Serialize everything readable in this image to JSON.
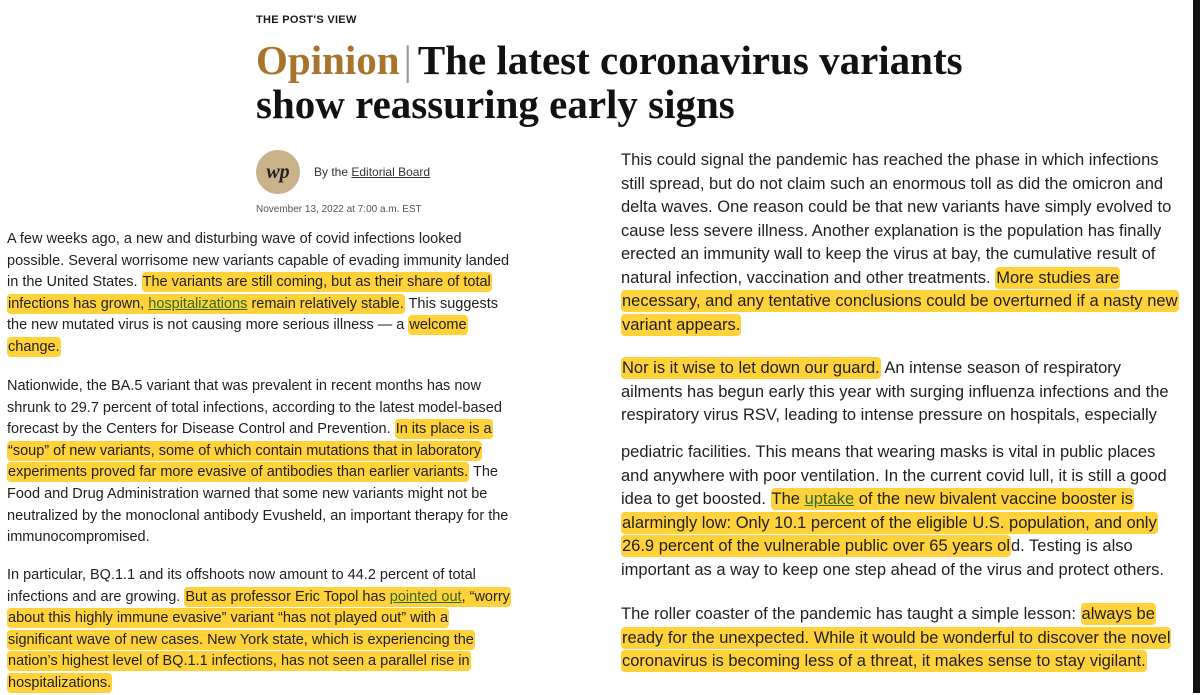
{
  "kicker": "THE POST'S VIEW",
  "headline": {
    "section": "Opinion",
    "title": "The latest coronavirus variants show reassuring early signs"
  },
  "byline": {
    "logo_text": "wp",
    "prefix": "By the",
    "author": "Editorial Board",
    "date": "November 13, 2022 at 7:00 a.m. EST"
  },
  "left": {
    "p1": {
      "a": "A few weeks ago, a new and disturbing wave of covid infections looked possible. Several worrisome new variants capable of evading immunity landed in the United States.",
      "h1": "The variants are still coming, but as their share of total infections has grown,",
      "link": "hospitalizations",
      "h2": "remain relatively stable.",
      "b": "This suggests the new mutated virus is not causing more serious illness — a",
      "h3": "welcome change."
    },
    "p2": {
      "a": "Nationwide, the BA.5 variant that was prevalent in recent months has now shrunk to 29.7 percent of total infections, according to the latest model-based forecast by the Centers for Disease Control and Prevention.",
      "h1": "In its place is a “soup” of new variants, some of which contain mutations that in laboratory experiments proved far more evasive of antibodies than earlier variants.",
      "b": "The Food and Drug Administration warned that some new variants might not be neutralized by the monoclonal antibody Evusheld, an important therapy for the immunocompromised."
    },
    "p3": {
      "a": "In particular, BQ.1.1 and its offshoots now amount to 44.2 percent of total infections and are growing.",
      "h1": "But as professor Eric Topol has",
      "link": "pointed out",
      "h2": ", “worry about this highly immune evasive” variant “has not played out” with a significant wave of new cases. New York state, which is experiencing the nation’s highest level of BQ.1.1 infections, has not seen a parallel rise in hospitalizations."
    }
  },
  "right": {
    "p1": {
      "a": "This could signal the pandemic has reached the phase in which infections still spread, but do not claim such an enormous toll as did the omicron and delta waves. One reason could be that new variants have simply evolved to cause less severe illness. Another explanation is the population has finally erected an immunity wall to keep the virus at bay, the cumulative result of natural infection, vaccination and other treatments.",
      "h1": "More studies are necessary, and any tentative conclusions could be overturned if a nasty new variant appears."
    },
    "p2": {
      "h1": "Nor is it wise to let down our guard.",
      "a": "An intense season of respiratory ailments has begun early this year with surging influenza infections and the respiratory virus RSV, leading to intense pressure on hospitals, especially"
    },
    "p3": {
      "a": "pediatric facilities. This means that wearing masks is vital in public places and anywhere with poor ventilation. In the current covid lull, it is still a good idea to get boosted.",
      "h1": "The",
      "link": "uptake",
      "h2": "of the new bivalent vaccine booster is alarmingly low: Only 10.1 percent of the eligible U.S. population, and only 26.9 percent of the vulnerable public over 65 years ol",
      "b": "d. Testing is also important as a way to keep one step ahead of the virus and protect others."
    },
    "p4": {
      "a": "The roller coaster of the pandemic has taught a simple lesson:",
      "h1": "always be ready for the unexpected. While it would be wonderful to discover the novel coronavirus is becoming less of a threat, it makes sense to stay vigilant."
    }
  }
}
